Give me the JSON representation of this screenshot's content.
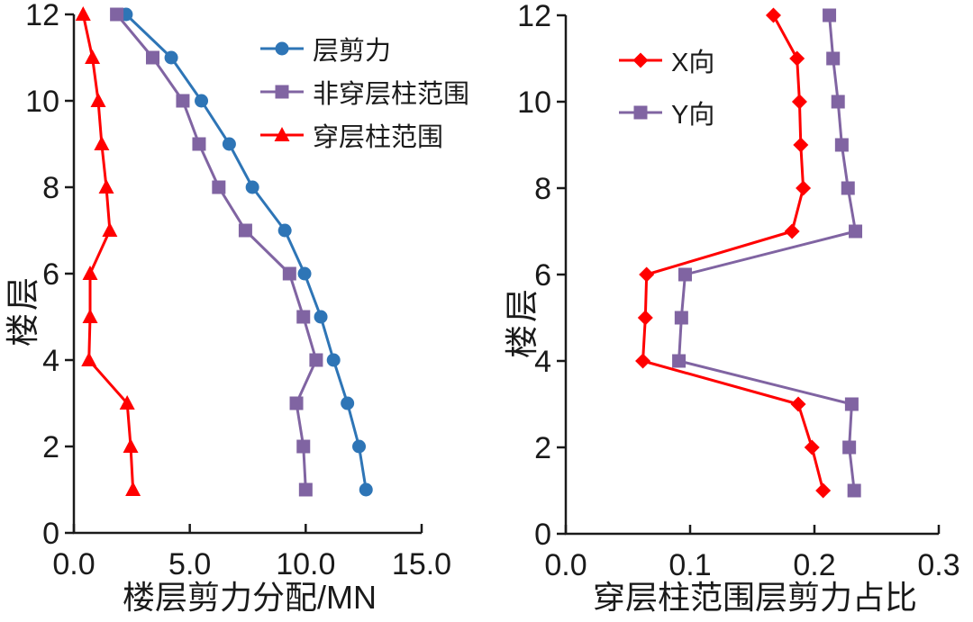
{
  "colors": {
    "background": "#ffffff",
    "axis": "#1a1a1a",
    "blue_series": "#2E75B6",
    "purple_series": "#8064A2",
    "red_series": "#FF0000"
  },
  "chart_data": [
    {
      "type": "line",
      "title": "",
      "xlabel": "楼层剪力分配/MN",
      "ylabel": "楼层",
      "xlim": [
        0,
        15
      ],
      "ylim": [
        0,
        12
      ],
      "grid": false,
      "legend_position": "inside-top-right",
      "xticks": {
        "values": [
          0,
          5,
          10,
          15
        ],
        "labels": [
          "0.0",
          "5.0",
          "10.0",
          "15.0"
        ]
      },
      "yticks": {
        "values": [
          0,
          2,
          4,
          6,
          8,
          10,
          12
        ],
        "labels": [
          "0",
          "2",
          "4",
          "6",
          "8",
          "10",
          "12"
        ]
      },
      "floors": [
        1,
        2,
        3,
        4,
        5,
        6,
        7,
        8,
        9,
        10,
        11,
        12
      ],
      "series": [
        {
          "name": "层剪力",
          "marker": "circle",
          "color": "#2E75B6",
          "values": [
            12.6,
            12.3,
            11.8,
            11.2,
            10.65,
            9.95,
            9.1,
            7.7,
            6.7,
            5.5,
            4.2,
            2.25
          ]
        },
        {
          "name": "非穿层柱范围",
          "marker": "square",
          "color": "#8064A2",
          "values": [
            10.0,
            9.9,
            9.6,
            10.45,
            9.9,
            9.3,
            7.4,
            6.25,
            5.4,
            4.7,
            3.4,
            1.85
          ]
        },
        {
          "name": "穿层柱范围",
          "marker": "triangle",
          "color": "#FF0000",
          "values": [
            2.55,
            2.45,
            2.3,
            0.65,
            0.7,
            0.7,
            1.55,
            1.4,
            1.2,
            1.05,
            0.8,
            0.4
          ]
        }
      ]
    },
    {
      "type": "line",
      "title": "",
      "xlabel": "穿层柱范围层剪力占比",
      "ylabel": "楼层",
      "xlim": [
        0,
        0.3
      ],
      "ylim": [
        0,
        12
      ],
      "grid": false,
      "legend_position": "inside-top-left",
      "xticks": {
        "values": [
          0,
          0.1,
          0.2,
          0.3
        ],
        "labels": [
          "0.0",
          "0.1",
          "0.2",
          "0.3"
        ]
      },
      "yticks": {
        "values": [
          0,
          2,
          4,
          6,
          8,
          10,
          12
        ],
        "labels": [
          "0",
          "2",
          "4",
          "6",
          "8",
          "10",
          "12"
        ]
      },
      "floors": [
        1,
        2,
        3,
        4,
        5,
        6,
        7,
        8,
        9,
        10,
        11,
        12
      ],
      "series": [
        {
          "name": "X向",
          "marker": "diamond",
          "color": "#FF0000",
          "values": [
            0.207,
            0.198,
            0.187,
            0.062,
            0.064,
            0.065,
            0.182,
            0.191,
            0.189,
            0.188,
            0.186,
            0.167
          ]
        },
        {
          "name": "Y向",
          "marker": "square",
          "color": "#8064A2",
          "values": [
            0.232,
            0.228,
            0.23,
            0.091,
            0.093,
            0.096,
            0.233,
            0.227,
            0.222,
            0.219,
            0.215,
            0.212
          ]
        }
      ]
    }
  ]
}
